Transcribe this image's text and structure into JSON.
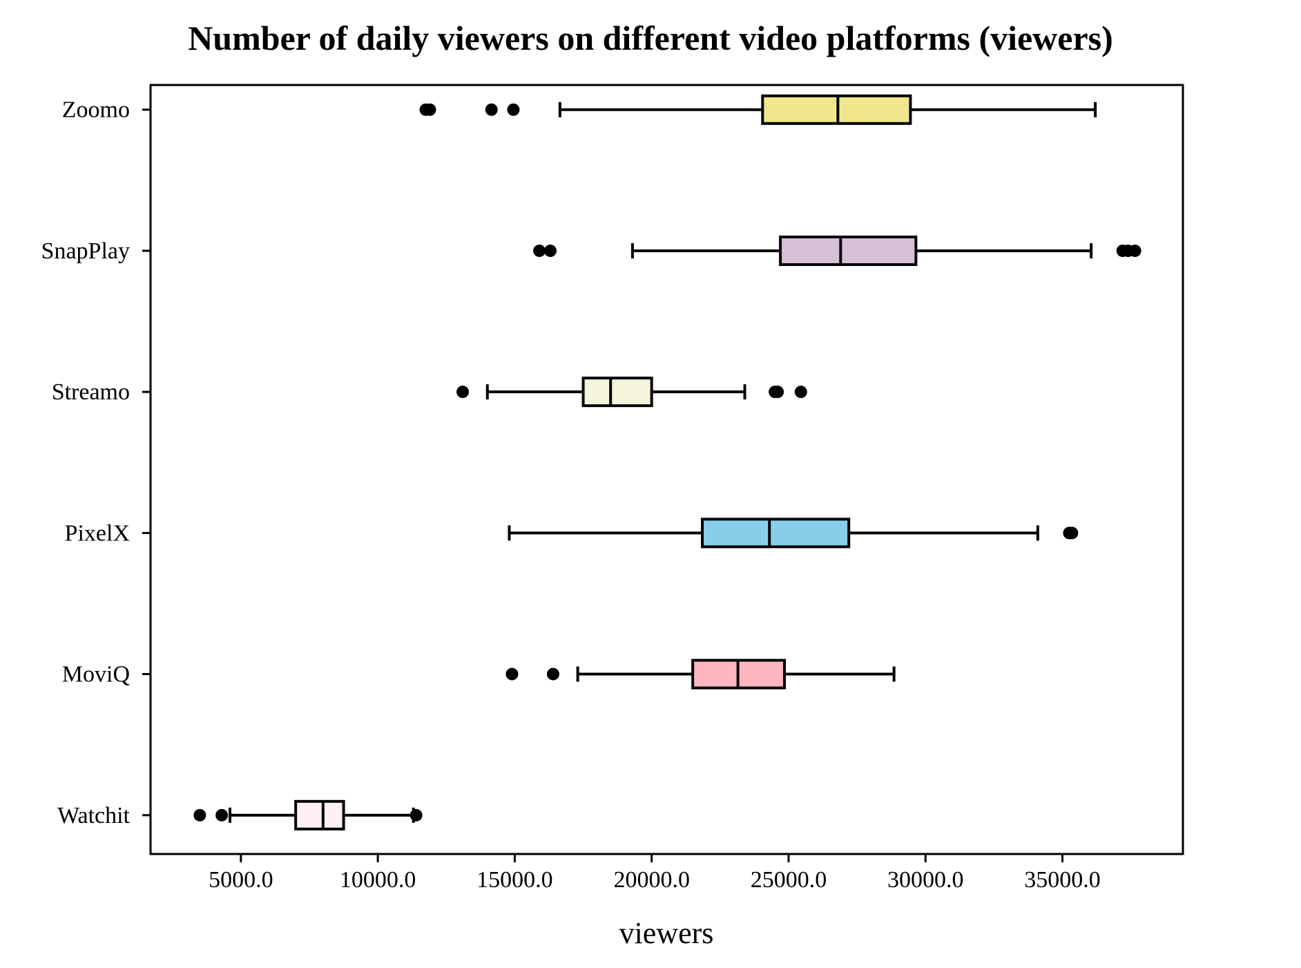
{
  "chart_data": {
    "type": "boxplot",
    "orientation": "horizontal",
    "title": "Number of daily viewers on different video platforms (viewers)",
    "xlabel": "viewers",
    "ylabel": "",
    "xlim": [
      1700,
      39400
    ],
    "xticks": [
      5000,
      10000,
      15000,
      20000,
      25000,
      30000,
      35000
    ],
    "xtick_labels": [
      "5000.0",
      "10000.0",
      "15000.0",
      "20000.0",
      "25000.0",
      "30000.0",
      "35000.0"
    ],
    "grid": false,
    "categories": [
      "Watchit",
      "MoviQ",
      "PixelX",
      "Streamo",
      "SnapPlay",
      "Zoomo"
    ],
    "series": [
      {
        "category": "Watchit",
        "color": "#fff0f5",
        "whisker_low": 4600,
        "q1": 7000,
        "median": 8000,
        "q3": 8750,
        "whisker_high": 11300,
        "outliers": [
          3500,
          4300,
          11400
        ]
      },
      {
        "category": "MoviQ",
        "color": "#ffb6c1",
        "whisker_low": 17300,
        "q1": 21500,
        "median": 23150,
        "q3": 24850,
        "whisker_high": 28850,
        "outliers": [
          14900,
          16400
        ]
      },
      {
        "category": "PixelX",
        "color": "#87ceeb",
        "whisker_low": 14800,
        "q1": 21850,
        "median": 24300,
        "q3": 27200,
        "whisker_high": 34100,
        "outliers": [
          35250,
          35350
        ]
      },
      {
        "category": "Streamo",
        "color": "#f5f5dc",
        "whisker_low": 14000,
        "q1": 17500,
        "median": 18500,
        "q3": 20000,
        "whisker_high": 23400,
        "outliers": [
          13100,
          24500,
          24600,
          25450
        ]
      },
      {
        "category": "SnapPlay",
        "color": "#d8bfd8",
        "whisker_low": 19300,
        "q1": 24700,
        "median": 26900,
        "q3": 29650,
        "whisker_high": 36050,
        "outliers": [
          15900,
          16300,
          37200,
          37400,
          37650
        ]
      },
      {
        "category": "Zoomo",
        "color": "#f0e68c",
        "whisker_low": 16650,
        "q1": 24050,
        "median": 26800,
        "q3": 29450,
        "whisker_high": 36200,
        "outliers": [
          11750,
          11900,
          14150,
          14950
        ]
      }
    ]
  }
}
